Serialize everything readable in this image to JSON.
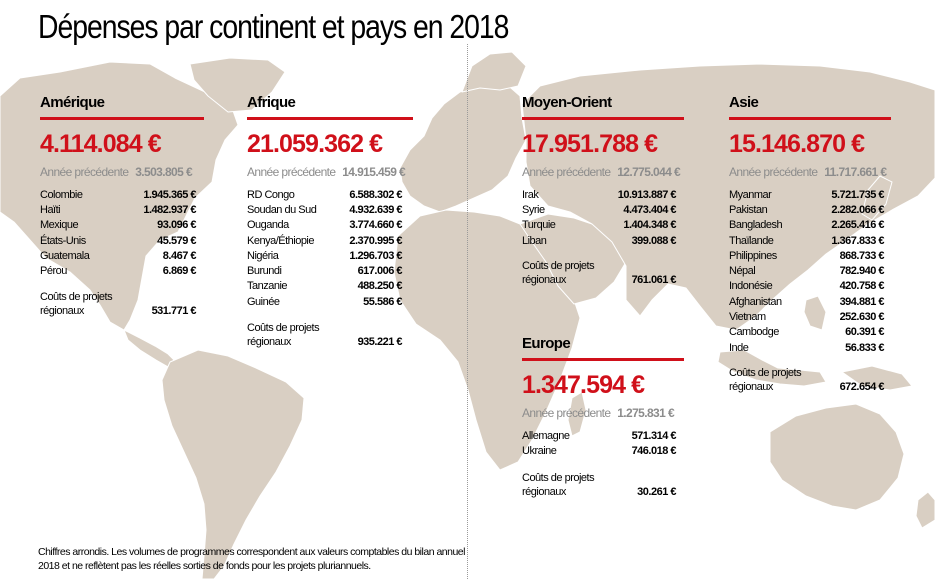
{
  "title": "Dépenses par continent et pays en 2018",
  "accent_color": "#d0101a",
  "map_color": "#d9cfc3",
  "regions": {
    "amerique": {
      "name": "Amérique",
      "total": "4.114.084 €",
      "previous_label": "Année précédente",
      "previous_value": "3.503.805 €",
      "countries": [
        {
          "name": "Colombie",
          "value": "1.945.365 €"
        },
        {
          "name": "Haïti",
          "value": "1.482.937 €"
        },
        {
          "name": "Mexique",
          "value": "93.096 €"
        },
        {
          "name": "États-Unis",
          "value": "45.579 €"
        },
        {
          "name": "Guatemala",
          "value": "8.467 €"
        },
        {
          "name": "Pérou",
          "value": "6.869 €"
        }
      ],
      "regional_label_1": "Coûts de projets",
      "regional_label_2": "régionaux",
      "regional_value": "531.771 €"
    },
    "afrique": {
      "name": "Afrique",
      "total": "21.059.362 €",
      "previous_label": "Année précédente",
      "previous_value": "14.915.459 €",
      "countries": [
        {
          "name": "RD Congo",
          "value": "6.588.302 €"
        },
        {
          "name": "Soudan du Sud",
          "value": "4.932.639 €"
        },
        {
          "name": "Ouganda",
          "value": "3.774.660 €"
        },
        {
          "name": "Kenya/Éthiopie",
          "value": "2.370.995 €"
        },
        {
          "name": "Nigéria",
          "value": "1.296.703 €"
        },
        {
          "name": "Burundi",
          "value": "617.006 €"
        },
        {
          "name": "Tanzanie",
          "value": "488.250 €"
        },
        {
          "name": "Guinée",
          "value": "55.586 €"
        }
      ],
      "regional_label_1": "Coûts de projets",
      "regional_label_2": "régionaux",
      "regional_value": "935.221 €"
    },
    "moyen_orient": {
      "name": "Moyen-Orient",
      "total": "17.951.788 €",
      "previous_label": "Année précédente",
      "previous_value": "12.775.044 €",
      "countries": [
        {
          "name": "Irak",
          "value": "10.913.887 €"
        },
        {
          "name": "Syrie",
          "value": "4.473.404 €"
        },
        {
          "name": "Turquie",
          "value": "1.404.348 €"
        },
        {
          "name": "Liban",
          "value": "399.088 €"
        }
      ],
      "regional_label_1": "Coûts de projets",
      "regional_label_2": "régionaux",
      "regional_value": "761.061 €"
    },
    "europe": {
      "name": "Europe",
      "total": "1.347.594 €",
      "previous_label": "Année précédente",
      "previous_value": "1.275.831 €",
      "countries": [
        {
          "name": "Allemagne",
          "value": "571.314 €"
        },
        {
          "name": "Ukraine",
          "value": "746.018 €"
        }
      ],
      "regional_label_1": "Coûts de projets",
      "regional_label_2": "régionaux",
      "regional_value": "30.261 €"
    },
    "asie": {
      "name": "Asie",
      "total": "15.146.870 €",
      "previous_label": "Année précédente",
      "previous_value": "11.717.661 €",
      "countries": [
        {
          "name": "Myanmar",
          "value": "5.721.735 €"
        },
        {
          "name": "Pakistan",
          "value": "2.282.066 €"
        },
        {
          "name": "Bangladesh",
          "value": "2.265.416 €"
        },
        {
          "name": "Thaïlande",
          "value": "1.367.833 €"
        },
        {
          "name": "Philippines",
          "value": "868.733 €"
        },
        {
          "name": "Népal",
          "value": "782.940 €"
        },
        {
          "name": "Indonésie",
          "value": "420.758 €"
        },
        {
          "name": "Afghanistan",
          "value": "394.881 €"
        },
        {
          "name": "Vietnam",
          "value": "252.630 €"
        },
        {
          "name": "Cambodge",
          "value": "60.391 €"
        },
        {
          "name": "Inde",
          "value": "56.833 €"
        }
      ],
      "regional_label_1": "Coûts de projets",
      "regional_label_2": "régionaux",
      "regional_value": "672.654 €"
    }
  },
  "footnote_line1": "Chiffres arrondis. Les volumes de programmes correspondent aux valeurs comptables du bilan annuel",
  "footnote_line2": "2018 et ne reflètent pas les réelles sorties de fonds pour les projets pluriannuels."
}
